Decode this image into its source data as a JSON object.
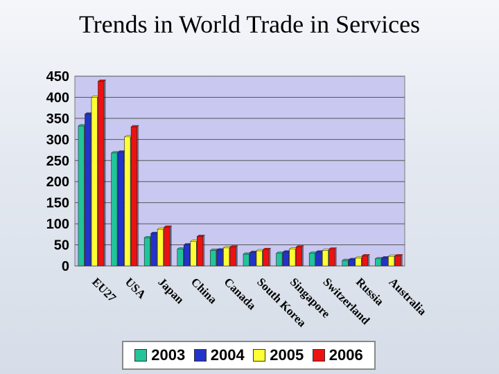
{
  "title": "Trends in World Trade in Services",
  "chart_data": {
    "type": "bar",
    "title": "Trends in World Trade in Services",
    "xlabel": "",
    "ylabel": "",
    "ylim": [
      0,
      450
    ],
    "yticks": [
      0,
      50,
      100,
      150,
      200,
      250,
      300,
      350,
      400,
      450
    ],
    "grid": true,
    "legend_position": "bottom",
    "categories": [
      "EU27",
      "USA",
      "Japan",
      "China",
      "Canada",
      "South Korea",
      "Singapore",
      "Switzerland",
      "Russia",
      "Australia"
    ],
    "series": [
      {
        "name": "2003",
        "color": "#22c49a",
        "values": [
          332,
          268,
          67,
          40,
          37,
          28,
          30,
          30,
          13,
          17
        ]
      },
      {
        "name": "2004",
        "color": "#2233cc",
        "values": [
          360,
          270,
          77,
          50,
          38,
          32,
          33,
          33,
          15,
          19
        ]
      },
      {
        "name": "2005",
        "color": "#ffff33",
        "values": [
          400,
          306,
          87,
          58,
          43,
          36,
          40,
          37,
          19,
          23
        ]
      },
      {
        "name": "2006",
        "color": "#ee1111",
        "values": [
          438,
          330,
          92,
          70,
          45,
          39,
          45,
          40,
          24,
          24
        ]
      }
    ]
  }
}
